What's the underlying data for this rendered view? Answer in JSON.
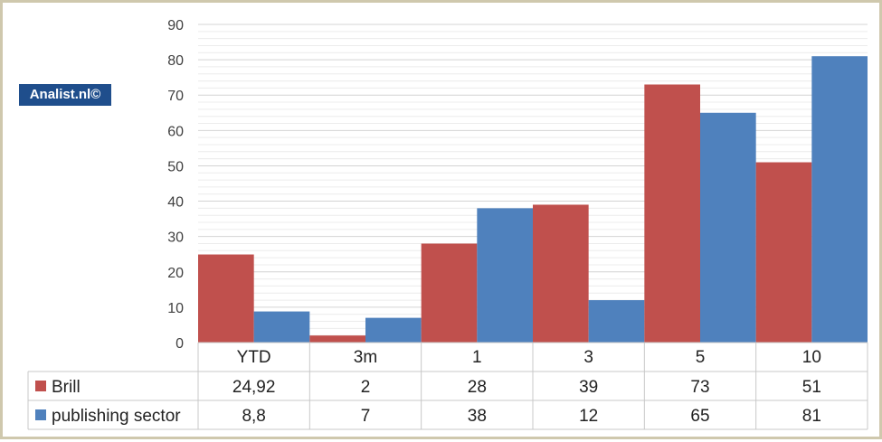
{
  "watermark": "Analist.nl©",
  "chart_data": {
    "type": "bar",
    "title": "",
    "xlabel": "",
    "ylabel": "",
    "ylim": [
      0,
      90
    ],
    "yticks": [
      0,
      10,
      20,
      30,
      40,
      50,
      60,
      70,
      80,
      90
    ],
    "grid": true,
    "categories": [
      "YTD",
      "3m",
      "1",
      "3",
      "5",
      "10"
    ],
    "series": [
      {
        "name": "Brill",
        "color": "#c0504d",
        "values": [
          24.92,
          2,
          28,
          39,
          73,
          51
        ],
        "labels": [
          "24,92",
          "2",
          "28",
          "39",
          "73",
          "51"
        ]
      },
      {
        "name": "publishing sector",
        "color": "#4f81bd",
        "values": [
          8.8,
          7,
          38,
          12,
          65,
          81
        ],
        "labels": [
          "8,8",
          "7",
          "38",
          "12",
          "65",
          "81"
        ]
      }
    ],
    "legend": "data table below chart"
  }
}
